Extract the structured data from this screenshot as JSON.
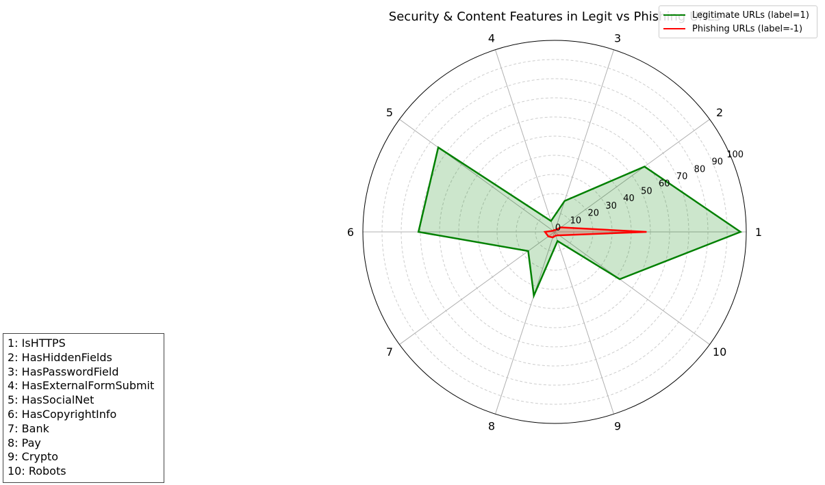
{
  "chart_data": {
    "type": "radar",
    "title": "Security & Content Features in Legit vs Phishing URLs",
    "axes": [
      "1",
      "2",
      "3",
      "4",
      "5",
      "6",
      "7",
      "8",
      "9",
      "10"
    ],
    "radial_ticks": [
      0,
      10,
      20,
      30,
      40,
      50,
      60,
      70,
      80,
      90,
      100
    ],
    "rlim": [
      0,
      100
    ],
    "grid": true,
    "legend_position": "top-right",
    "series": [
      {
        "name": "Legitimate URLs (label=1)",
        "color": "#008000",
        "fill": true,
        "values": [
          97,
          58,
          17,
          6,
          75,
          71,
          17,
          35,
          5,
          42
        ]
      },
      {
        "name": "Phishing URLs (label=-1)",
        "color": "#ff0000",
        "fill": true,
        "values": [
          48,
          4,
          1,
          1,
          1,
          5,
          4,
          3,
          2,
          3
        ]
      }
    ],
    "feature_key": [
      "1: IsHTTPS",
      "2: HasHiddenFields",
      "3: HasPasswordField",
      "4: HasExternalFormSubmit",
      "5: HasSocialNet",
      "6: HasCopyrightInfo",
      "7: Bank",
      "8: Pay",
      "9: Crypto",
      "10: Robots"
    ]
  }
}
